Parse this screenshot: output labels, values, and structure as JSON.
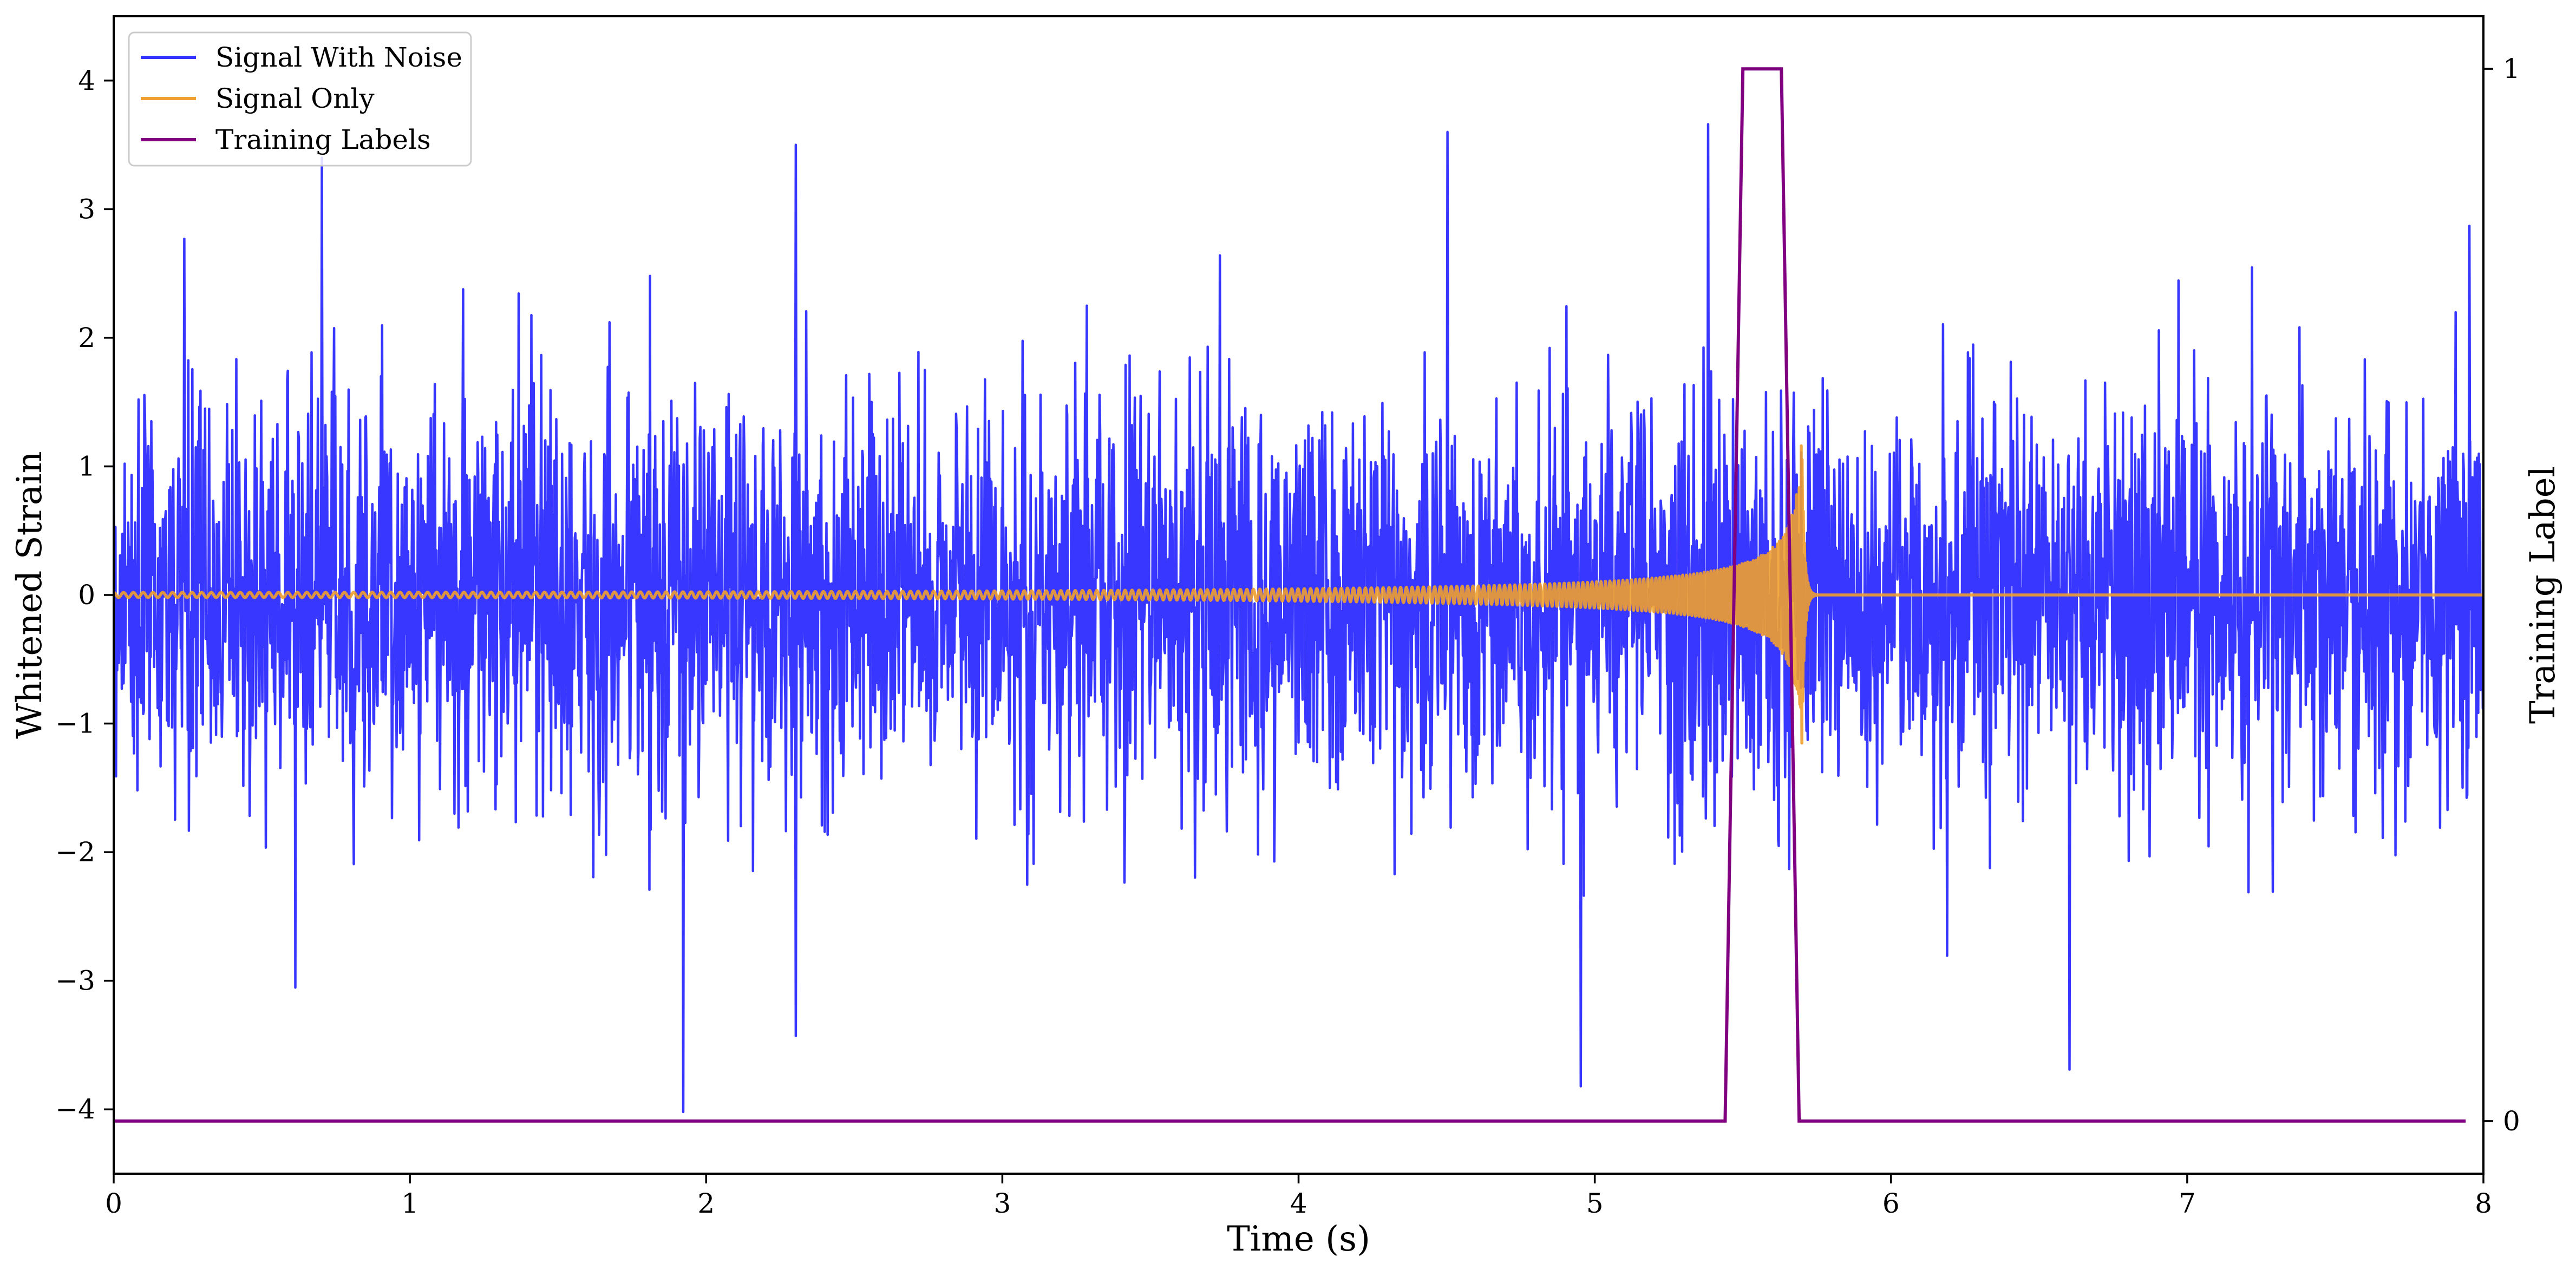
{
  "chart_data": {
    "type": "line",
    "title": "",
    "xlabel": "Time (s)",
    "ylabel": "Whitened Strain",
    "y2label": "Training Label",
    "xlim": [
      0,
      8
    ],
    "ylim": [
      -4.5,
      4.5
    ],
    "y2lim": [
      -0.05,
      1.05
    ],
    "xticks": [
      0,
      1,
      2,
      3,
      4,
      5,
      6,
      7,
      8
    ],
    "xtick_labels": [
      "0",
      "1",
      "2",
      "3",
      "4",
      "5",
      "6",
      "7",
      "8"
    ],
    "yticks": [
      -4,
      -3,
      -2,
      -1,
      0,
      1,
      2,
      3,
      4
    ],
    "ytick_labels": [
      "−4",
      "−3",
      "−2",
      "−1",
      "0",
      "1",
      "2",
      "3",
      "4"
    ],
    "y2ticks": [
      0,
      1
    ],
    "y2tick_labels": [
      "0",
      "1"
    ],
    "grid": false,
    "legend_position": "top-left",
    "series": [
      {
        "name": "Signal With Noise",
        "axis": "left",
        "color": "#3333ff",
        "kind": "noise",
        "sample_rate": 512,
        "std": 0.78,
        "min": -4.02,
        "max": 3.66,
        "notable_peaks": [
          [
            0.7,
            3.4
          ],
          [
            2.3,
            3.5
          ],
          [
            4.5,
            3.6
          ],
          [
            5.38,
            3.66
          ],
          [
            7.95,
            2.87
          ],
          [
            1.92,
            -4.02
          ],
          [
            4.95,
            -3.82
          ],
          [
            2.3,
            -3.43
          ],
          [
            6.6,
            -3.69
          ]
        ]
      },
      {
        "name": "Signal Only",
        "axis": "left",
        "color": "#f0a030",
        "kind": "chirp",
        "start_amplitude": 0.02,
        "peak_time": 5.7,
        "peak_amplitude": 1.35,
        "start_frequency_hz": 30,
        "end_frequency_hz": 250,
        "after_peak_value": 0
      },
      {
        "name": "Training Labels",
        "axis": "right",
        "color": "#800080",
        "kind": "step",
        "points": [
          [
            0.0,
            0
          ],
          [
            5.44,
            0
          ],
          [
            5.5,
            1
          ],
          [
            5.63,
            1
          ],
          [
            5.69,
            0
          ],
          [
            7.94,
            0
          ]
        ]
      }
    ]
  }
}
